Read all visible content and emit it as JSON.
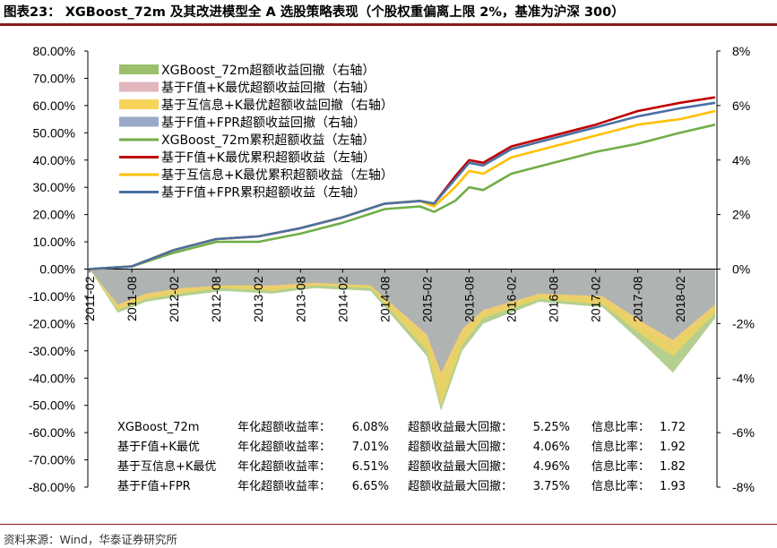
{
  "header": {
    "title": "图表23：  XGBoost_72m 及其改进模型全 A 选股策略表现（个股权重偏离上限 2%，基准为沪深 300）",
    "source": "资料来源：Wind，华泰证券研究所"
  },
  "chart_data": {
    "type": "line",
    "left_axis": {
      "ylim": [
        -80,
        80
      ],
      "ticks": [
        "80.00%",
        "70.00%",
        "60.00%",
        "50.00%",
        "40.00%",
        "30.00%",
        "20.00%",
        "10.00%",
        "0.00%",
        "-10.00%",
        "-20.00%",
        "-30.00%",
        "-40.00%",
        "-50.00%",
        "-60.00%",
        "-70.00%",
        "-80.00%"
      ]
    },
    "right_axis": {
      "ylim": [
        -8,
        8
      ],
      "ticks": [
        "8%",
        "6%",
        "4%",
        "2%",
        "0%",
        "-2%",
        "-4%",
        "-6%",
        "-8%"
      ]
    },
    "x_ticks": [
      "2011-02",
      "2011-08",
      "2012-02",
      "2012-08",
      "2013-02",
      "2013-08",
      "2014-02",
      "2014-08",
      "2015-02",
      "2015-08",
      "2016-02",
      "2016-08",
      "2017-02",
      "2017-08",
      "2018-02"
    ],
    "x_axis": {
      "start": "2011-02",
      "end": "2018-07"
    },
    "legend": [
      {
        "label": "XGBoost_72m超额收益回撤（右轴）",
        "type": "area",
        "color": "#9bbf6a"
      },
      {
        "label": "基于F值+K最优超额收益回撤（右轴）",
        "type": "area",
        "color": "#e2b6bd"
      },
      {
        "label": "基于互信息+K最优超额收益回撤（右轴）",
        "type": "area",
        "color": "#f7d35a"
      },
      {
        "label": "基于F值+FPR超额收益回撤（右轴）",
        "type": "area",
        "color": "#9aa9c8"
      },
      {
        "label": "XGBoost_72m累积超额收益（左轴）",
        "type": "line",
        "color": "#70ad47"
      },
      {
        "label": "基于F值+K最优累积超额收益（左轴）",
        "type": "line",
        "color": "#c00000"
      },
      {
        "label": "基于互信息+K最优累积超额收益（左轴）",
        "type": "line",
        "color": "#ffc000"
      },
      {
        "label": "基于F值+FPR累积超额收益（左轴）",
        "type": "line",
        "color": "#4a6fa5"
      }
    ],
    "line_series": [
      {
        "name": "XGBoost_72m累积超额收益（左轴）",
        "color": "#70ad47",
        "x": [
          "2011-02",
          "2011-08",
          "2012-02",
          "2012-08",
          "2013-02",
          "2013-08",
          "2014-02",
          "2014-08",
          "2015-01",
          "2015-03",
          "2015-06",
          "2015-08",
          "2015-10",
          "2016-02",
          "2016-08",
          "2017-02",
          "2017-08",
          "2018-02",
          "2018-07"
        ],
        "y": [
          0,
          1,
          6,
          10,
          10,
          13,
          17,
          22,
          23,
          21,
          25,
          30,
          29,
          35,
          39,
          43,
          46,
          50,
          53
        ]
      },
      {
        "name": "基于F值+K最优累积超额收益（左轴）",
        "color": "#c00000",
        "x": [
          "2011-02",
          "2011-08",
          "2012-02",
          "2012-08",
          "2013-02",
          "2013-08",
          "2014-02",
          "2014-08",
          "2015-01",
          "2015-03",
          "2015-06",
          "2015-08",
          "2015-10",
          "2016-02",
          "2016-08",
          "2017-02",
          "2017-08",
          "2018-02",
          "2018-07"
        ],
        "y": [
          0,
          1,
          7,
          11,
          12,
          15,
          19,
          24,
          25,
          24,
          34,
          40,
          39,
          45,
          49,
          53,
          58,
          61,
          63
        ]
      },
      {
        "name": "基于互信息+K最优累积超额收益（左轴）",
        "color": "#ffc000",
        "x": [
          "2011-02",
          "2011-08",
          "2012-02",
          "2012-08",
          "2013-02",
          "2013-08",
          "2014-02",
          "2014-08",
          "2015-01",
          "2015-03",
          "2015-06",
          "2015-08",
          "2015-10",
          "2016-02",
          "2016-08",
          "2017-02",
          "2017-08",
          "2018-02",
          "2018-07"
        ],
        "y": [
          0,
          1,
          7,
          11,
          12,
          15,
          19,
          24,
          25,
          23,
          30,
          36,
          35,
          41,
          45,
          49,
          53,
          55,
          58
        ]
      },
      {
        "name": "基于F值+FPR累积超额收益（左轴）",
        "color": "#4a6fa5",
        "x": [
          "2011-02",
          "2011-08",
          "2012-02",
          "2012-08",
          "2013-02",
          "2013-08",
          "2014-02",
          "2014-08",
          "2015-01",
          "2015-03",
          "2015-06",
          "2015-08",
          "2015-10",
          "2016-02",
          "2016-08",
          "2017-02",
          "2017-08",
          "2018-02",
          "2018-07"
        ],
        "y": [
          0,
          1,
          7,
          11,
          12,
          15,
          19,
          24,
          25,
          24,
          33,
          39,
          38,
          44,
          48,
          52,
          56,
          59,
          61
        ]
      }
    ],
    "drawdown_series": [
      {
        "name": "XGBoost_72m超额收益回撤（右轴）",
        "color": "#9bbf6a",
        "x": [
          "2011-02",
          "2011-06",
          "2011-10",
          "2012-03",
          "2012-09",
          "2013-04",
          "2013-10",
          "2014-06",
          "2015-02",
          "2015-04",
          "2015-07",
          "2015-10",
          "2016-06",
          "2017-03",
          "2017-09",
          "2018-01",
          "2018-07"
        ],
        "y": [
          0,
          -1.6,
          -1.2,
          -1.0,
          -0.8,
          -0.9,
          -0.7,
          -0.8,
          -3.2,
          -5.2,
          -3.0,
          -2.0,
          -1.2,
          -1.4,
          -2.8,
          -3.8,
          -1.8
        ]
      },
      {
        "name": "基于F值+K最优超额收益回撤（右轴）",
        "color": "#e2b6bd",
        "x": [
          "2011-02",
          "2011-06",
          "2011-10",
          "2012-03",
          "2012-09",
          "2013-04",
          "2013-10",
          "2014-06",
          "2015-02",
          "2015-04",
          "2015-07",
          "2015-10",
          "2016-06",
          "2017-03",
          "2017-09",
          "2018-01",
          "2018-07"
        ],
        "y": [
          0,
          -1.4,
          -1.0,
          -0.8,
          -0.6,
          -0.7,
          -0.6,
          -0.6,
          -2.6,
          -4.1,
          -2.4,
          -1.6,
          -1.0,
          -1.1,
          -2.2,
          -2.8,
          -1.4
        ]
      },
      {
        "name": "基于互信息+K最优超额收益回撤（右轴）",
        "color": "#f7d35a",
        "x": [
          "2011-02",
          "2011-06",
          "2011-10",
          "2012-03",
          "2012-09",
          "2013-04",
          "2013-10",
          "2014-06",
          "2015-02",
          "2015-04",
          "2015-07",
          "2015-10",
          "2016-06",
          "2017-03",
          "2017-09",
          "2018-01",
          "2018-07"
        ],
        "y": [
          0,
          -1.5,
          -1.1,
          -0.9,
          -0.7,
          -0.8,
          -0.6,
          -0.7,
          -3.0,
          -5.0,
          -2.8,
          -1.8,
          -1.1,
          -1.3,
          -2.5,
          -3.2,
          -1.6
        ]
      },
      {
        "name": "基于F值+FPR超额收益回撤（右轴）",
        "color": "#9aa9c8",
        "x": [
          "2011-02",
          "2011-06",
          "2011-10",
          "2012-03",
          "2012-09",
          "2013-04",
          "2013-10",
          "2014-06",
          "2015-02",
          "2015-04",
          "2015-07",
          "2015-10",
          "2016-06",
          "2017-03",
          "2017-09",
          "2018-01",
          "2018-07"
        ],
        "y": [
          0,
          -1.3,
          -0.9,
          -0.7,
          -0.6,
          -0.6,
          -0.5,
          -0.6,
          -2.4,
          -3.8,
          -2.2,
          -1.5,
          -0.9,
          -1.0,
          -2.0,
          -2.6,
          -1.3
        ]
      }
    ],
    "stats_table": {
      "rows": [
        {
          "model": "XGBoost_72m",
          "annual_label": "年化超额收益率：",
          "annual": "6.08%",
          "dd_label": "超额收益最大回撤：",
          "dd": "5.25%",
          "ir_label": "信息比率：",
          "ir": "1.72"
        },
        {
          "model": "基于F值+K最优",
          "annual_label": "年化超额收益率：",
          "annual": "7.01%",
          "dd_label": "超额收益最大回撤：",
          "dd": "4.06%",
          "ir_label": "信息比率：",
          "ir": "1.92"
        },
        {
          "model": "基于互信息+K最优",
          "annual_label": "年化超额收益率：",
          "annual": "6.51%",
          "dd_label": "超额收益最大回撤：",
          "dd": "4.96%",
          "ir_label": "信息比率：",
          "ir": "1.82"
        },
        {
          "model": "基于F值+FPR",
          "annual_label": "年化超额收益率：",
          "annual": "6.65%",
          "dd_label": "超额收益最大回撤：",
          "dd": "3.75%",
          "ir_label": "信息比率：",
          "ir": "1.93"
        }
      ]
    }
  }
}
